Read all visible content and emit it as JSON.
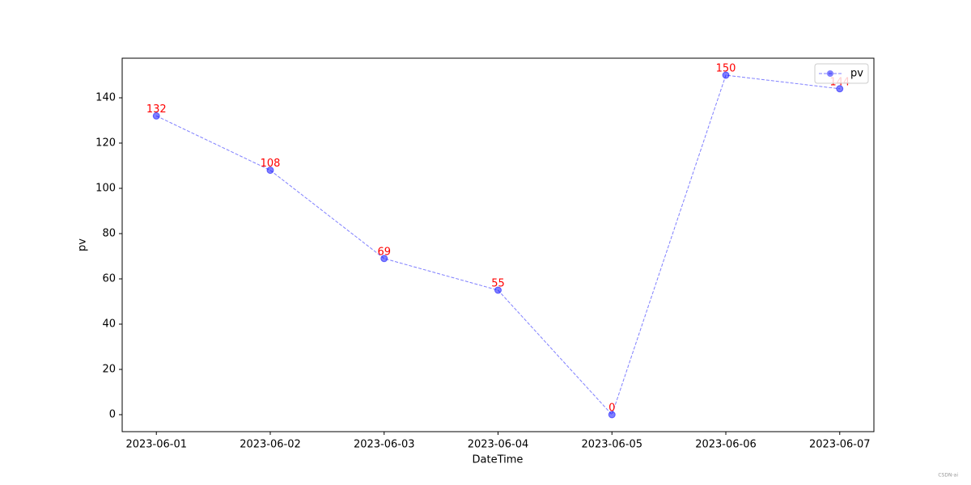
{
  "chart_data": {
    "type": "line",
    "x_label": "DateTime",
    "y_label": "pv",
    "categories": [
      "2023-06-01",
      "2023-06-02",
      "2023-06-03",
      "2023-06-04",
      "2023-06-05",
      "2023-06-06",
      "2023-06-07"
    ],
    "series": [
      {
        "name": "pv",
        "color": "#0000ff",
        "values": [
          132,
          108,
          69,
          55,
          0,
          150,
          144
        ]
      }
    ],
    "label_color": "#ff0000",
    "ylim": [
      -7.5,
      157.5
    ],
    "yticks": [
      0,
      20,
      40,
      60,
      80,
      100,
      120,
      140
    ],
    "grid": false,
    "legend": "upper-right",
    "watermark": "CSDN-ai"
  }
}
